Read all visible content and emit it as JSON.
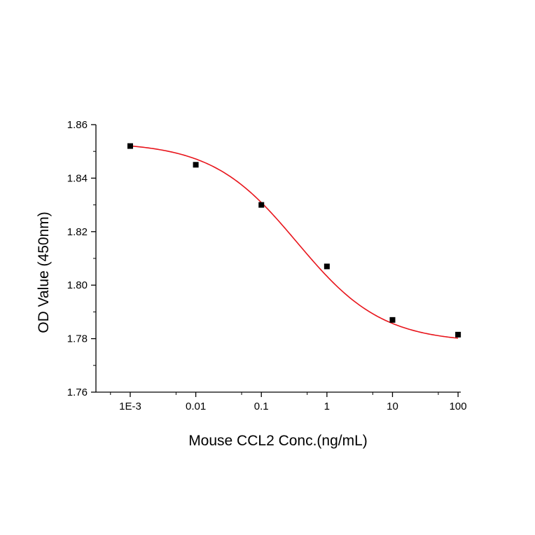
{
  "chart_data": {
    "type": "scatter",
    "xlabel": "Mouse CCL2 Conc.(ng/mL)",
    "ylabel": "OD Value (450nm)",
    "x_scale": "log",
    "xlim": [
      0.0003,
      110
    ],
    "ylim": [
      1.76,
      1.86
    ],
    "x_ticks": [
      {
        "value": 0.001,
        "label": "1E-3"
      },
      {
        "value": 0.01,
        "label": "0.01"
      },
      {
        "value": 0.1,
        "label": "0.1"
      },
      {
        "value": 1,
        "label": "1"
      },
      {
        "value": 10,
        "label": "10"
      },
      {
        "value": 100,
        "label": "100"
      }
    ],
    "y_ticks": [
      {
        "value": 1.76,
        "label": "1.76"
      },
      {
        "value": 1.78,
        "label": "1.78"
      },
      {
        "value": 1.8,
        "label": "1.80"
      },
      {
        "value": 1.82,
        "label": "1.82"
      },
      {
        "value": 1.84,
        "label": "1.84"
      },
      {
        "value": 1.86,
        "label": "1.86"
      }
    ],
    "series": [
      {
        "kind": "points",
        "color": "#000000",
        "marker": "square",
        "x": [
          0.001,
          0.01,
          0.1,
          1,
          10,
          100
        ],
        "y": [
          1.852,
          1.845,
          1.83,
          1.807,
          1.787,
          1.7815
        ]
      },
      {
        "kind": "fit-curve",
        "color": "#e8141b",
        "model": "4PL",
        "top": 1.8535,
        "bottom": 1.7785,
        "ec50": 0.35,
        "hill": 0.67
      }
    ],
    "grid": false,
    "legend": "none"
  }
}
